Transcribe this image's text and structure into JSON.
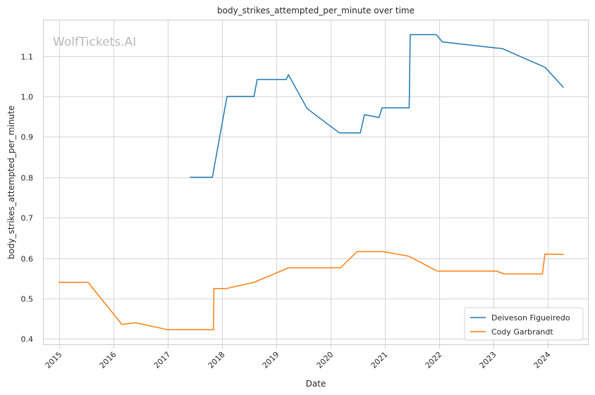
{
  "chart_data": {
    "type": "line",
    "title": "body_strikes_attempted_per_minute over time",
    "xlabel": "Date",
    "ylabel": "body_strikes_attempted_per_minute",
    "watermark": "WolfTickets.AI",
    "xlim": [
      "2014-09-15",
      "2024-10-01"
    ],
    "ylim": [
      0.385,
      1.19
    ],
    "x_ticks": [
      "2015",
      "2016",
      "2017",
      "2018",
      "2019",
      "2020",
      "2021",
      "2022",
      "2023",
      "2024"
    ],
    "y_ticks": [
      "0.4",
      "0.5",
      "0.6",
      "0.7",
      "0.8",
      "0.9",
      "1.0",
      "1.1"
    ],
    "grid": true,
    "legend_position": "bottom-right",
    "series": [
      {
        "name": "Deiveson Figueiredo",
        "color": "#1f77b4",
        "x": [
          "2017-06-03",
          "2017-10-28",
          "2018-02-03",
          "2018-08-04",
          "2018-08-25",
          "2019-03-09",
          "2019-03-23",
          "2019-07-27",
          "2020-02-29",
          "2020-07-19",
          "2020-08-15",
          "2020-11-21",
          "2020-12-12",
          "2021-06-12",
          "2021-06-19",
          "2021-12-11",
          "2022-01-22",
          "2023-01-21",
          "2023-02-25",
          "2023-12-02",
          "2023-12-16",
          "2024-04-13"
        ],
        "y": [
          0.8,
          0.8,
          1.0,
          1.0,
          1.042,
          1.042,
          1.054,
          0.97,
          0.91,
          0.91,
          0.955,
          0.948,
          0.972,
          0.972,
          1.153,
          1.153,
          1.135,
          1.12,
          1.119,
          1.074,
          1.071,
          1.023
        ]
      },
      {
        "name": "Cody Garbrandt",
        "color": "#ff7f0e",
        "x": [
          "2015-01-01",
          "2015-07-15",
          "2016-02-27",
          "2016-05-29",
          "2016-12-30",
          "2017-11-04",
          "2017-11-07",
          "2018-02-01",
          "2018-08-04",
          "2019-03-23",
          "2020-03-08",
          "2020-06-27",
          "2020-12-19",
          "2021-06-05",
          "2021-06-19",
          "2021-12-18",
          "2023-01-21",
          "2023-03-11",
          "2023-11-25",
          "2023-12-12",
          "2024-04-13"
        ],
        "y": [
          0.54,
          0.54,
          0.436,
          0.44,
          0.423,
          0.423,
          0.525,
          0.525,
          0.54,
          0.576,
          0.576,
          0.616,
          0.616,
          0.605,
          0.603,
          0.568,
          0.568,
          0.561,
          0.561,
          0.61,
          0.609
        ]
      }
    ]
  }
}
